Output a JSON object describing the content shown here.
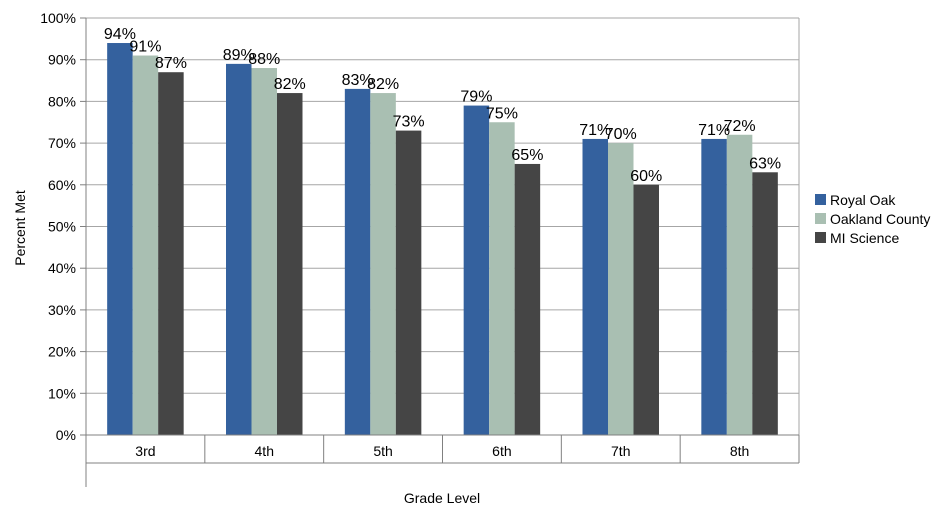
{
  "chart_data": {
    "type": "bar",
    "categories": [
      "3rd",
      "4th",
      "5th",
      "6th",
      "7th",
      "8th"
    ],
    "series": [
      {
        "name": "Royal Oak",
        "values": [
          94,
          89,
          83,
          79,
          71,
          71
        ],
        "labels": [
          "94%",
          "89%",
          "83%",
          "79%",
          "71%",
          "71%"
        ],
        "color": "#34619e"
      },
      {
        "name": "Oakland County",
        "values": [
          91,
          88,
          82,
          75,
          70,
          72
        ],
        "labels": [
          "91%",
          "88%",
          "82%",
          "75%",
          "70%",
          "72%"
        ],
        "color": "#a9bfb2"
      },
      {
        "name": "MI Science",
        "values": [
          87,
          82,
          73,
          65,
          60,
          63
        ],
        "labels": [
          "87%",
          "82%",
          "73%",
          "65%",
          "60%",
          "63%"
        ],
        "color": "#454545"
      }
    ],
    "xlabel": "Grade Level",
    "ylabel": "Percent Met",
    "ylim": [
      0,
      100
    ],
    "yticks": [
      "0%",
      "10%",
      "20%",
      "30%",
      "40%",
      "50%",
      "60%",
      "70%",
      "80%",
      "90%",
      "100%"
    ],
    "grid": true,
    "legend_position": "right"
  }
}
